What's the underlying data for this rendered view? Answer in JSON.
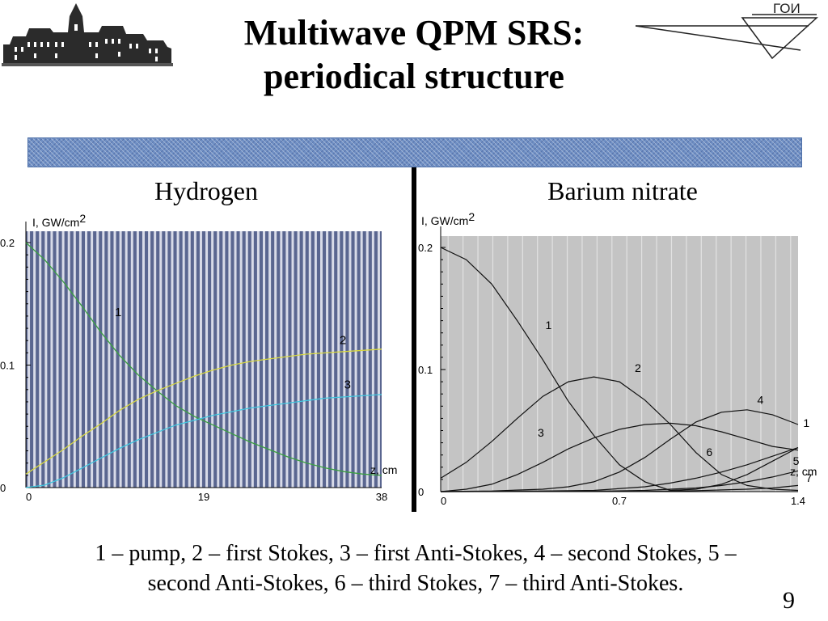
{
  "slide": {
    "title_line1": "Multiwave QPM SRS:",
    "title_line2": "periodical structure",
    "logo_right_text": "ГОИ",
    "caption_line1": "1 – pump, 2 – first Stokes, 3 – first Anti-Stokes, 4 – second Stokes, 5 –",
    "caption_line2": "second Anti-Stokes, 6 – third Stokes, 7 – third Anti-Stokes.",
    "page_number": "9"
  },
  "chart_data": [
    {
      "type": "line",
      "panel_title": "Hydrogen",
      "ylabel": "I, GW/cm",
      "ylabel_sup": "2",
      "xlabel": "z, cm",
      "xlim": [
        0,
        38
      ],
      "ylim": [
        0,
        0.2
      ],
      "x_ticks": [
        "0",
        "19",
        "38"
      ],
      "y_ticks": [
        "0",
        "0.1",
        "0.2"
      ],
      "background": "#5a6690",
      "stripe_color": "#d8dbe8",
      "series": [
        {
          "name": "1",
          "color": "#3aa040",
          "x": [
            0,
            2,
            4,
            6,
            8,
            10,
            12,
            14,
            16,
            18,
            20,
            22,
            24,
            26,
            28,
            30,
            32,
            34,
            36,
            38
          ],
          "y": [
            0.2,
            0.186,
            0.168,
            0.148,
            0.127,
            0.108,
            0.092,
            0.079,
            0.067,
            0.058,
            0.051,
            0.044,
            0.037,
            0.031,
            0.025,
            0.02,
            0.016,
            0.013,
            0.011,
            0.01
          ]
        },
        {
          "name": "2",
          "color": "#d8d840",
          "x": [
            0,
            2,
            4,
            6,
            8,
            10,
            12,
            14,
            16,
            18,
            20,
            22,
            24,
            26,
            28,
            30,
            32,
            34,
            36,
            38
          ],
          "y": [
            0.011,
            0.021,
            0.031,
            0.042,
            0.052,
            0.063,
            0.072,
            0.079,
            0.085,
            0.091,
            0.096,
            0.1,
            0.103,
            0.105,
            0.107,
            0.109,
            0.11,
            0.111,
            0.112,
            0.113
          ]
        },
        {
          "name": "3",
          "color": "#40c8e0",
          "x": [
            0,
            2,
            4,
            6,
            8,
            10,
            12,
            14,
            16,
            18,
            20,
            22,
            24,
            26,
            28,
            30,
            32,
            34,
            36,
            38
          ],
          "y": [
            0,
            0.002,
            0.008,
            0.016,
            0.024,
            0.032,
            0.039,
            0.045,
            0.051,
            0.055,
            0.059,
            0.062,
            0.065,
            0.067,
            0.069,
            0.071,
            0.073,
            0.074,
            0.075,
            0.076
          ]
        }
      ],
      "curve_labels": [
        {
          "text": "1",
          "x": 9.5,
          "y": 0.14
        },
        {
          "text": "2",
          "x": 33.5,
          "y": 0.117
        },
        {
          "text": "3",
          "x": 34,
          "y": 0.081
        }
      ]
    },
    {
      "type": "line",
      "panel_title": "Barium nitrate",
      "ylabel": "I, GW/cm",
      "ylabel_sup": "2",
      "xlabel": "z, cm",
      "xlim": [
        0,
        1.4
      ],
      "ylim": [
        0,
        0.2
      ],
      "x_ticks": [
        "0",
        "0.7",
        "1.4"
      ],
      "y_ticks": [
        "0",
        "0.1",
        "0.2"
      ],
      "background": "#c4c4c4",
      "stripe_color": "#e2e2e2",
      "series": [
        {
          "name": "1",
          "color": "#111111",
          "x": [
            0,
            0.1,
            0.2,
            0.3,
            0.4,
            0.5,
            0.6,
            0.7,
            0.8,
            0.9,
            1.0,
            1.1,
            1.2,
            1.3,
            1.4
          ],
          "y": [
            0.2,
            0.19,
            0.17,
            0.14,
            0.108,
            0.074,
            0.046,
            0.022,
            0.008,
            0.001,
            0.002,
            0.006,
            0.014,
            0.025,
            0.036
          ]
        },
        {
          "name": "2",
          "color": "#111111",
          "x": [
            0,
            0.1,
            0.2,
            0.3,
            0.4,
            0.5,
            0.6,
            0.7,
            0.8,
            0.9,
            1.0,
            1.1,
            1.2,
            1.3,
            1.4
          ],
          "y": [
            0.011,
            0.024,
            0.041,
            0.06,
            0.078,
            0.09,
            0.094,
            0.09,
            0.075,
            0.055,
            0.032,
            0.014,
            0.005,
            0.002,
            0.001
          ]
        },
        {
          "name": "3",
          "color": "#111111",
          "x": [
            0,
            0.1,
            0.2,
            0.3,
            0.4,
            0.5,
            0.6,
            0.7,
            0.8,
            0.9,
            1.0,
            1.1,
            1.2,
            1.3,
            1.4
          ],
          "y": [
            0,
            0.002,
            0.006,
            0.014,
            0.024,
            0.035,
            0.044,
            0.051,
            0.055,
            0.056,
            0.054,
            0.049,
            0.043,
            0.037,
            0.034
          ]
        },
        {
          "name": "4",
          "color": "#111111",
          "x": [
            0,
            0.2,
            0.4,
            0.5,
            0.6,
            0.7,
            0.8,
            0.9,
            1.0,
            1.1,
            1.2,
            1.3,
            1.4
          ],
          "y": [
            0,
            0.0005,
            0.002,
            0.004,
            0.008,
            0.016,
            0.028,
            0.043,
            0.057,
            0.065,
            0.067,
            0.063,
            0.055
          ]
        },
        {
          "name": "5",
          "color": "#111111",
          "x": [
            0,
            0.6,
            0.8,
            0.9,
            1.0,
            1.1,
            1.2,
            1.3,
            1.4
          ],
          "y": [
            0,
            0.0003,
            0.001,
            0.002,
            0.003,
            0.005,
            0.008,
            0.012,
            0.017
          ]
        },
        {
          "name": "6",
          "color": "#111111",
          "x": [
            0,
            0.4,
            0.6,
            0.8,
            0.9,
            1.0,
            1.1,
            1.2,
            1.3,
            1.4
          ],
          "y": [
            0,
            0.0005,
            0.001,
            0.004,
            0.007,
            0.011,
            0.016,
            0.022,
            0.029,
            0.036
          ]
        },
        {
          "name": "7",
          "color": "#111111",
          "x": [
            0,
            0.8,
            1.0,
            1.2,
            1.3,
            1.4
          ],
          "y": [
            0,
            0.0002,
            0.0008,
            0.002,
            0.003,
            0.005
          ]
        }
      ],
      "curve_labels": [
        {
          "text": "1",
          "x": 0.41,
          "y": 0.133
        },
        {
          "text": "2",
          "x": 0.76,
          "y": 0.098
        },
        {
          "text": "3",
          "x": 0.38,
          "y": 0.045
        },
        {
          "text": "4",
          "x": 1.24,
          "y": 0.072
        },
        {
          "text": "5",
          "x": 1.38,
          "y": 0.022
        },
        {
          "text": "6",
          "x": 1.04,
          "y": 0.029
        },
        {
          "text": "1",
          "x": 1.42,
          "y": 0.053
        },
        {
          "text": "7",
          "x": 1.43,
          "y": 0.008
        }
      ]
    }
  ]
}
